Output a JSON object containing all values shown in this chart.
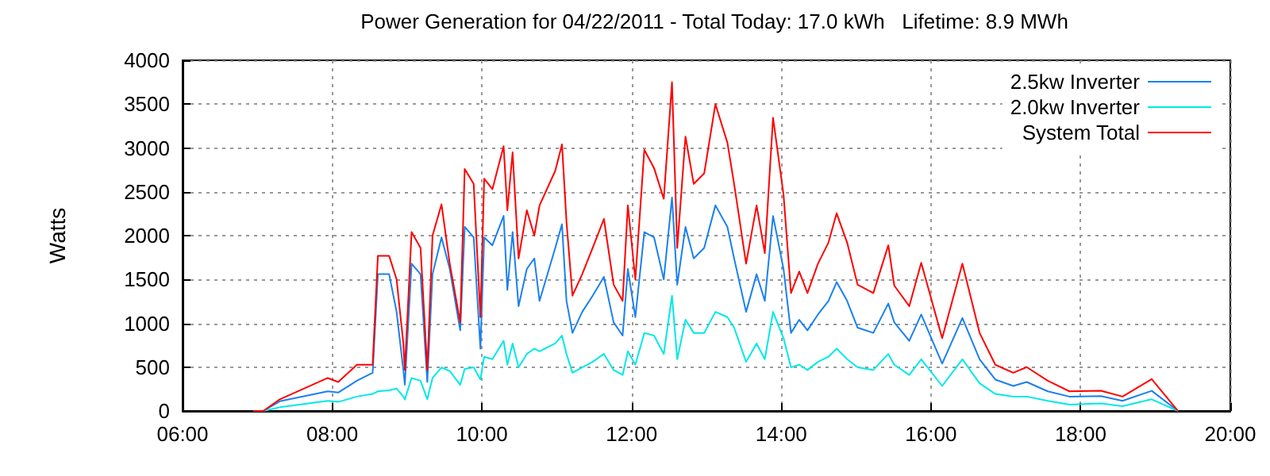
{
  "chart_data": {
    "type": "line",
    "title": "Power Generation for 04/22/2011 - Total Today: 17.0 kWh   Lifetime: 8.9 MWh",
    "ylabel": "Watts",
    "x": [
      6.95,
      7.08,
      7.3,
      7.94,
      8.08,
      8.33,
      8.54,
      8.61,
      8.76,
      8.86,
      8.95,
      8.97,
      9.06,
      9.18,
      9.27,
      9.34,
      9.46,
      9.57,
      9.71,
      9.77,
      9.89,
      9.98,
      10.03,
      10.14,
      10.29,
      10.34,
      10.41,
      10.49,
      10.6,
      10.7,
      10.77,
      10.98,
      11.07,
      11.13,
      11.21,
      11.34,
      11.48,
      11.63,
      11.76,
      11.88,
      11.95,
      12.05,
      12.17,
      12.3,
      12.43,
      12.54,
      12.61,
      12.72,
      12.83,
      12.97,
      13.12,
      13.28,
      13.37,
      13.53,
      13.67,
      13.78,
      13.89,
      14.03,
      14.13,
      14.24,
      14.35,
      14.49,
      14.63,
      14.74,
      14.88,
      15.02,
      15.23,
      15.43,
      15.51,
      15.71,
      15.87,
      16.15,
      16.42,
      16.65,
      16.86,
      17.1,
      17.28,
      17.56,
      17.85,
      18.27,
      18.56,
      18.95,
      19.3
    ],
    "series": [
      {
        "name": "2.5kw Inverter",
        "color": "#1a80f0",
        "values": [
          0,
          0,
          110,
          224,
          210,
          345,
          436,
          1560,
          1560,
          1130,
          467,
          300,
          1680,
          1560,
          330,
          1560,
          1980,
          1620,
          920,
          2100,
          1980,
          710,
          1980,
          1890,
          2225,
          1380,
          2040,
          1195,
          1620,
          1740,
          1255,
          1860,
          2130,
          1255,
          890,
          1130,
          1315,
          1530,
          1010,
          860,
          1620,
          1070,
          2040,
          1980,
          1500,
          2435,
          1440,
          2100,
          1740,
          1860,
          2345,
          2100,
          1740,
          1130,
          1560,
          1255,
          2225,
          1620,
          890,
          1040,
          920,
          1100,
          1255,
          1470,
          1255,
          950,
          890,
          1225,
          1010,
          800,
          1100,
          540,
          1060,
          590,
          358,
          285,
          330,
          224,
          164,
          170,
          115,
          230,
          0
        ]
      },
      {
        "name": "2.0kw Inverter",
        "color": "#00e8e8",
        "values": [
          0,
          0,
          42,
          115,
          103,
          164,
          194,
          224,
          236,
          255,
          164,
          130,
          376,
          345,
          133,
          376,
          497,
          455,
          297,
          480,
          497,
          360,
          618,
          590,
          800,
          527,
          770,
          497,
          650,
          710,
          680,
          770,
          860,
          650,
          436,
          497,
          560,
          650,
          467,
          410,
          680,
          527,
          890,
          860,
          650,
          1315,
          590,
          1040,
          890,
          890,
          1130,
          1070,
          950,
          560,
          770,
          590,
          1130,
          830,
          497,
          527,
          467,
          560,
          618,
          710,
          590,
          497,
          467,
          650,
          527,
          410,
          590,
          285,
          590,
          315,
          194,
          164,
          164,
          115,
          73,
          85,
          55,
          133,
          0
        ]
      },
      {
        "name": "System Total",
        "color": "#ff0000",
        "values": [
          0,
          0,
          133,
          376,
          330,
          527,
          527,
          1770,
          1770,
          1500,
          770,
          467,
          2040,
          1860,
          467,
          2000,
          2357,
          1680,
          1010,
          2760,
          2590,
          1070,
          2650,
          2530,
          3020,
          2290,
          2950,
          1740,
          2290,
          2000,
          2345,
          2740,
          3040,
          2160,
          1315,
          1560,
          1860,
          2190,
          1440,
          1255,
          2345,
          1500,
          2980,
          2770,
          2420,
          3750,
          1860,
          3130,
          2590,
          2710,
          3500,
          3060,
          2590,
          1680,
          2345,
          1800,
          3345,
          2470,
          1345,
          1590,
          1345,
          1680,
          1920,
          2255,
          1920,
          1440,
          1345,
          1890,
          1430,
          1195,
          1690,
          830,
          1680,
          890,
          527,
          436,
          500,
          345,
          224,
          230,
          164,
          364,
          0
        ]
      }
    ],
    "xlim": [
      6,
      20
    ],
    "xticks": [
      {
        "value": 6,
        "label": "06:00"
      },
      {
        "value": 8,
        "label": "08:00"
      },
      {
        "value": 10,
        "label": "10:00"
      },
      {
        "value": 12,
        "label": "12:00"
      },
      {
        "value": 14,
        "label": "14:00"
      },
      {
        "value": 16,
        "label": "16:00"
      },
      {
        "value": 18,
        "label": "18:00"
      },
      {
        "value": 20,
        "label": "20:00"
      }
    ],
    "ylim": [
      0,
      4000
    ],
    "yticks": [
      0,
      500,
      1000,
      1500,
      2000,
      2500,
      3000,
      3500,
      4000
    ],
    "grid": true,
    "legend": "top right",
    "line_style": "solid"
  }
}
